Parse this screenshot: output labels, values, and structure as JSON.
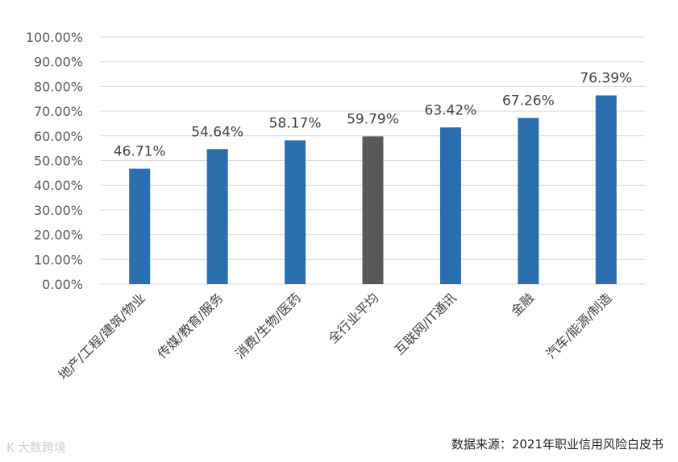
{
  "chart_data": {
    "type": "bar",
    "categories": [
      "地产/工程/建筑/物业",
      "传媒/教育/服务",
      "消费/生物/医药",
      "全行业平均",
      "互联网/IT通讯",
      "金融",
      "汽车/能源/制造"
    ],
    "values": [
      46.71,
      54.64,
      58.17,
      59.79,
      63.42,
      67.26,
      76.39
    ],
    "value_labels": [
      "46.71%",
      "54.64%",
      "58.17%",
      "59.79%",
      "63.42%",
      "67.26%",
      "76.39%"
    ],
    "ylim": [
      0,
      100
    ],
    "yticks": [
      "0.00%",
      "10.00%",
      "20.00%",
      "30.00%",
      "40.00%",
      "50.00%",
      "60.00%",
      "70.00%",
      "80.00%",
      "90.00%",
      "100.00%"
    ],
    "grid": true,
    "bar_colors": [
      "#2a6ead",
      "#2a6ead",
      "#2a6ead",
      "#595959",
      "#2a6ead",
      "#2a6ead",
      "#2a6ead"
    ],
    "title": "",
    "xlabel": "",
    "ylabel": ""
  },
  "source": "数据来源：2021年职业信用风险白皮书",
  "watermark": {
    "logo_icon": "bracket-logo-icon",
    "text": "大数跨境"
  }
}
